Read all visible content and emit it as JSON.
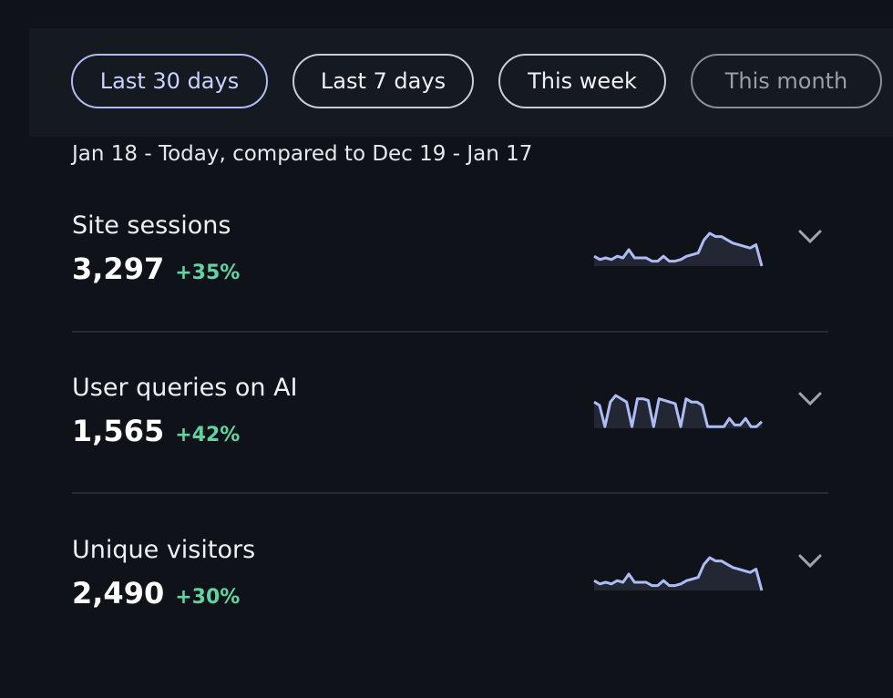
{
  "filters": [
    {
      "label": "Last 30 days",
      "active": true
    },
    {
      "label": "Last 7 days",
      "active": false
    },
    {
      "label": "This week",
      "active": false
    },
    {
      "label": "This month",
      "active": false
    }
  ],
  "range_text": "Jan 18 - Today, compared to Dec 19 - Jan 17",
  "colors": {
    "accent": "#aebcf5",
    "positive": "#5fd3a0",
    "background": "#0f1319"
  },
  "metrics": [
    {
      "name": "Site sessions",
      "value": "3,297",
      "delta": "+35%",
      "trend": [
        3,
        2,
        2.5,
        2,
        3,
        2.5,
        5,
        2.5,
        2.5,
        2.5,
        1.5,
        1.5,
        3,
        1.5,
        1.5,
        2,
        3,
        3.5,
        4,
        8,
        10,
        9,
        9,
        8,
        7,
        6.5,
        6,
        5.5,
        6.5,
        0
      ]
    },
    {
      "name": "User queries on AI",
      "value": "1,565",
      "delta": "+42%",
      "trend": [
        8,
        7,
        0.5,
        8,
        10,
        9,
        8,
        0.5,
        9,
        9,
        8.5,
        0.5,
        9,
        8.5,
        8,
        7.5,
        0.5,
        9,
        8,
        8,
        7,
        0.5,
        0.5,
        0.5,
        0.5,
        3,
        1,
        1,
        3,
        0.5,
        0.5,
        2
      ]
    },
    {
      "name": "Unique visitors",
      "value": "2,490",
      "delta": "+30%",
      "trend": [
        3,
        2,
        2.5,
        2,
        3,
        2.5,
        5,
        2.5,
        2.5,
        2.5,
        1.5,
        1.5,
        3,
        1.5,
        1.5,
        2,
        3,
        3.5,
        4,
        8,
        10,
        9,
        9,
        8,
        7,
        6.5,
        6,
        5.5,
        6.5,
        0
      ]
    }
  ]
}
